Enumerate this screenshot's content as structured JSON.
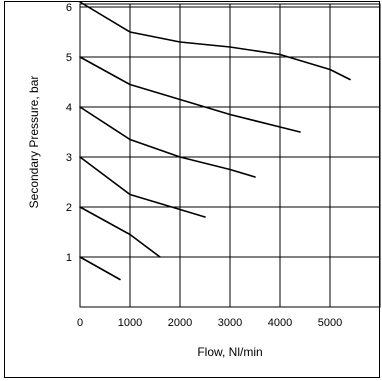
{
  "chart_data": {
    "type": "line",
    "title": "",
    "xlabel": "Flow,  Nl/min",
    "ylabel": "Secondary Pressure,  bar",
    "xlim": [
      0,
      6000
    ],
    "ylim": [
      0,
      6.1
    ],
    "grid": true,
    "x_ticks": [
      "0",
      "1000",
      "2000",
      "3000",
      "4000",
      "5000"
    ],
    "y_ticks": [
      "1",
      "2",
      "3",
      "4",
      "5",
      "6"
    ],
    "series": [
      {
        "x": [
          0,
          800
        ],
        "y": [
          1.0,
          0.55
        ]
      },
      {
        "x": [
          0,
          1000,
          1600
        ],
        "y": [
          2.0,
          1.45,
          1.0
        ]
      },
      {
        "x": [
          0,
          1000,
          2000,
          2500
        ],
        "y": [
          3.0,
          2.25,
          1.95,
          1.8
        ]
      },
      {
        "x": [
          0,
          1000,
          2000,
          3000,
          3500
        ],
        "y": [
          4.0,
          3.35,
          3.0,
          2.75,
          2.6
        ]
      },
      {
        "x": [
          0,
          1000,
          2000,
          3000,
          4000,
          4400
        ],
        "y": [
          5.0,
          4.45,
          4.15,
          3.85,
          3.6,
          3.5
        ]
      },
      {
        "x": [
          0,
          1000,
          2000,
          3000,
          4000,
          5000,
          5400
        ],
        "y": [
          6.1,
          5.5,
          5.3,
          5.2,
          5.05,
          4.75,
          4.55
        ]
      }
    ]
  }
}
